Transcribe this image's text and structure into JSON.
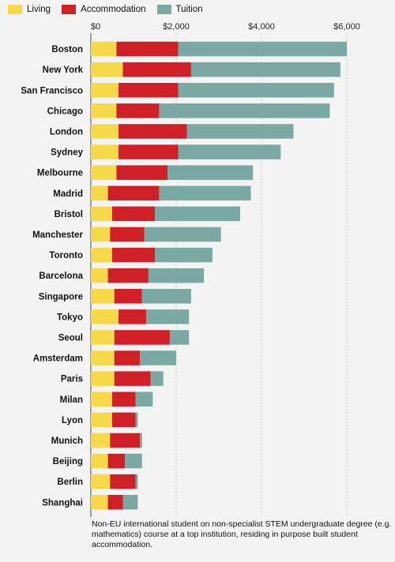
{
  "legend": {
    "living": "Living",
    "accommodation": "Accommodation",
    "tuition": "Tuition"
  },
  "colors": {
    "living": "#f5d949",
    "accommodation": "#cf1f27",
    "tuition": "#79a9a2",
    "gridline": "#c8c8c8",
    "background": "#f3f3f3"
  },
  "caption": "Non-EU international student on non-specialist STEM undergraduate degree (e.g. mathematics) course at a top institution, residing in purpose built student accommodation.",
  "chart_data": {
    "type": "bar",
    "orientation": "horizontal",
    "stacked": true,
    "xlim": [
      0,
      6000
    ],
    "xticks": [
      0,
      2000,
      4000,
      6000
    ],
    "xtick_labels": [
      "$0",
      "$2,000",
      "$4,000",
      "$6,000"
    ],
    "grid": true,
    "legend_position": "top",
    "categories": [
      "Boston",
      "New York",
      "San Francisco",
      "Chicago",
      "London",
      "Sydney",
      "Melbourne",
      "Madrid",
      "Bristol",
      "Manchester",
      "Toronto",
      "Barcelona",
      "Singapore",
      "Tokyo",
      "Seoul",
      "Amsterdam",
      "Paris",
      "Milan",
      "Lyon",
      "Munich",
      "Beijing",
      "Berlin",
      "Shanghai"
    ],
    "series": [
      {
        "name": "Living",
        "values": [
          600,
          750,
          650,
          600,
          650,
          650,
          600,
          400,
          500,
          450,
          500,
          400,
          550,
          650,
          550,
          550,
          550,
          500,
          500,
          450,
          400,
          450,
          400
        ]
      },
      {
        "name": "Accommodation",
        "values": [
          1450,
          1600,
          1400,
          1000,
          1600,
          1400,
          1200,
          1200,
          1000,
          800,
          1000,
          950,
          650,
          650,
          1300,
          600,
          850,
          550,
          550,
          700,
          400,
          600,
          350
        ]
      },
      {
        "name": "Tuition",
        "values": [
          3950,
          3500,
          3650,
          4000,
          2500,
          2400,
          2000,
          2150,
          2000,
          1800,
          1350,
          1300,
          1150,
          1000,
          450,
          850,
          300,
          400,
          50,
          50,
          400,
          50,
          350
        ]
      }
    ]
  }
}
